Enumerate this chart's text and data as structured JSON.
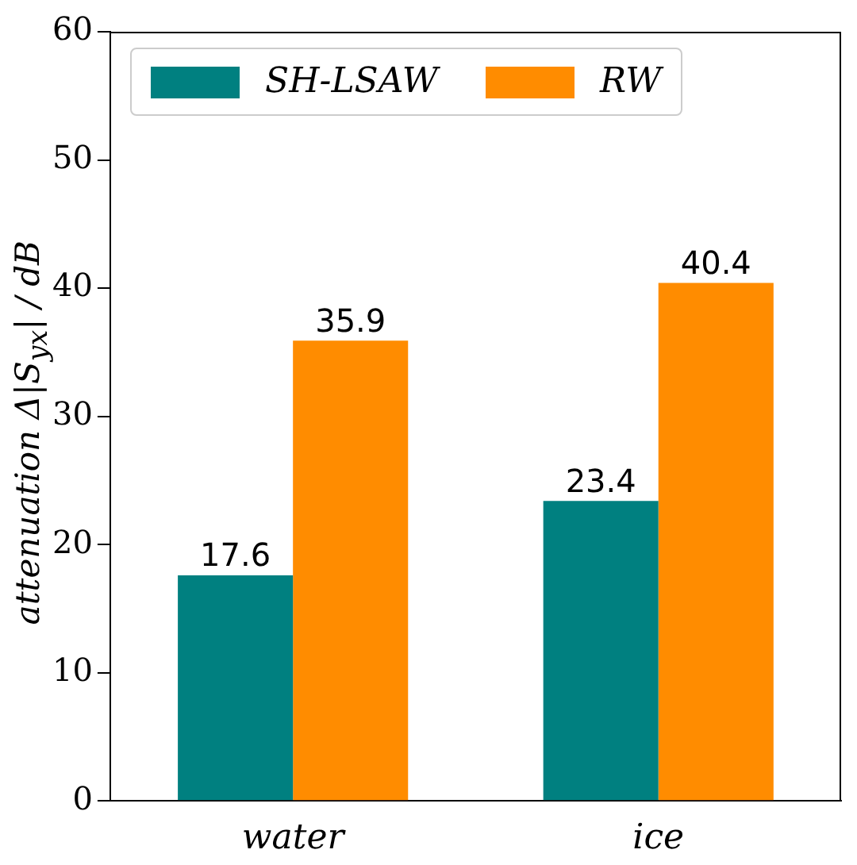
{
  "chart_data": {
    "type": "bar",
    "ylabel": "attenuation Δ|S$_{yx}$| / dB",
    "categories": [
      "water",
      "ice"
    ],
    "series": [
      {
        "name": "SH-LSAW",
        "color": "#008080",
        "values": [
          17.6,
          23.4
        ]
      },
      {
        "name": "RW",
        "color": "#ff8c00",
        "values": [
          35.9,
          40.4
        ]
      }
    ],
    "ylim": [
      0,
      60
    ],
    "yticks": [
      0,
      10,
      20,
      30,
      40,
      50,
      60
    ],
    "grid": false,
    "legend": "top left",
    "data_labels": true
  }
}
